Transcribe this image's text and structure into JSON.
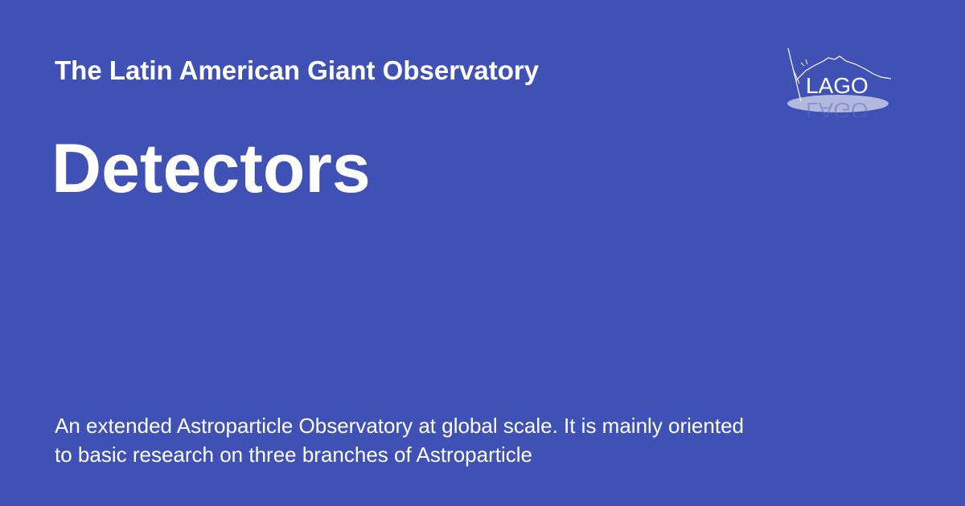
{
  "header": {
    "site_title": "The Latin American Giant Observatory"
  },
  "main": {
    "page_title": "Detectors",
    "description": "An extended Astroparticle Observatory at global scale. It is mainly oriented to basic research on three branches of Astroparticle"
  },
  "logo": {
    "text": "LAGO",
    "icon": "lago-logo-icon"
  },
  "colors": {
    "background": "#3f51b5",
    "text": "#ffffff",
    "logo_ellipse": "#c5cbe6"
  }
}
